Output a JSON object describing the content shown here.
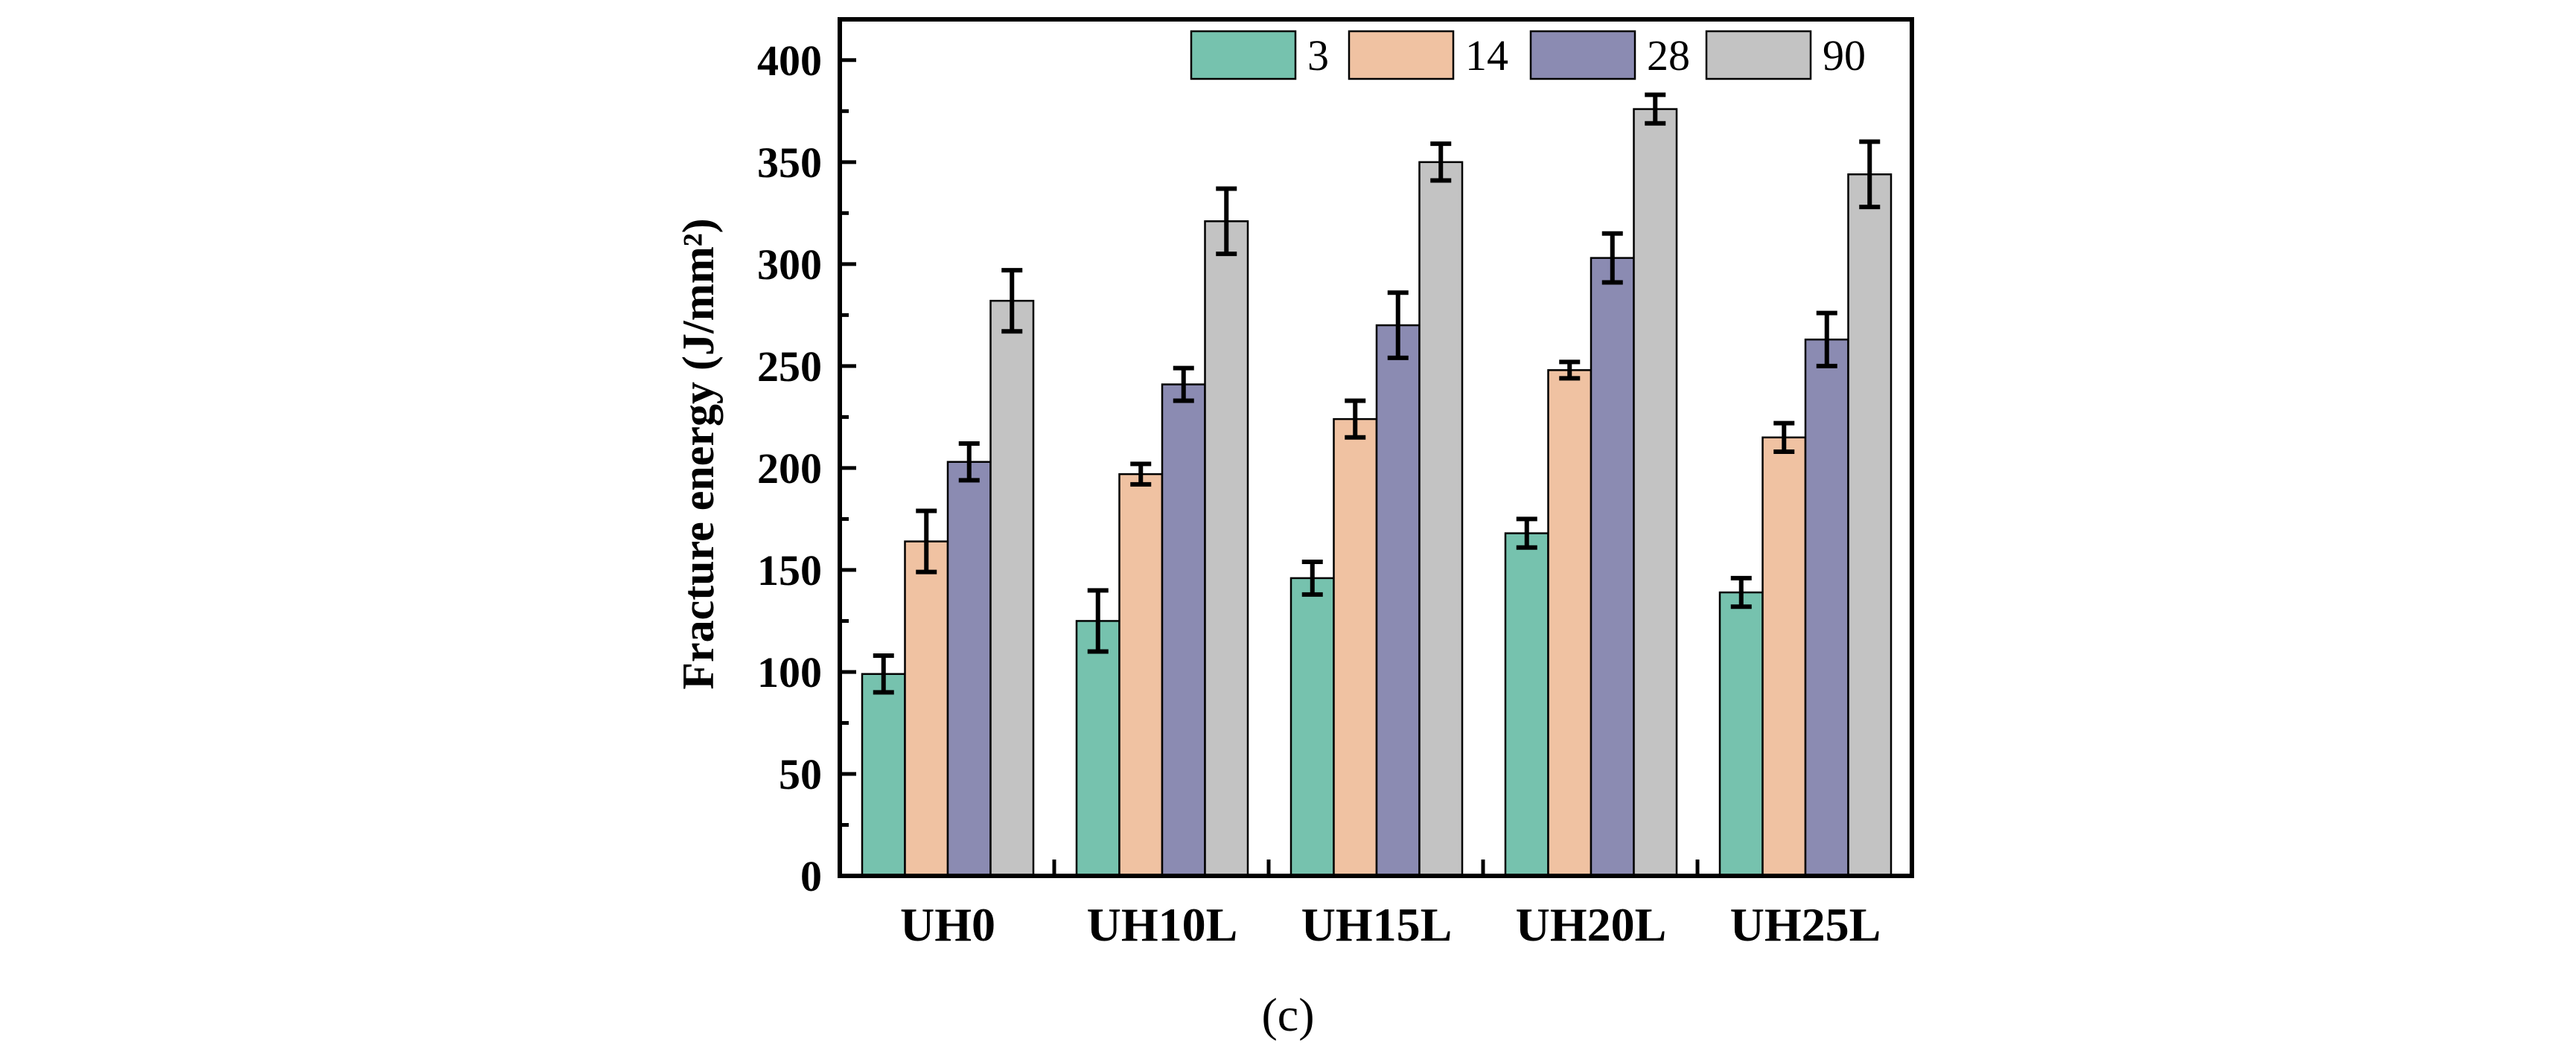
{
  "chart_data": {
    "type": "bar",
    "title": "",
    "xlabel": "",
    "ylabel": "Fracture energy (J/mm²)",
    "ylim": [
      0,
      420
    ],
    "yticks": [
      0,
      50,
      100,
      150,
      200,
      250,
      300,
      350,
      400
    ],
    "grid": false,
    "legend_position": "top-right",
    "categories": [
      "UH0",
      "UH10L",
      "UH15L",
      "UH20L",
      "UH25L"
    ],
    "series": [
      {
        "name": "3",
        "color": "#76c2ae",
        "values": [
          99,
          125,
          146,
          168,
          139
        ],
        "errors": [
          9,
          15,
          8,
          7,
          7
        ]
      },
      {
        "name": "14",
        "color": "#f0c2a2",
        "values": [
          164,
          197,
          224,
          248,
          215
        ],
        "errors": [
          15,
          5,
          9,
          4,
          7
        ]
      },
      {
        "name": "28",
        "color": "#8b8bb2",
        "values": [
          203,
          241,
          270,
          303,
          263
        ],
        "errors": [
          9,
          8,
          16,
          12,
          13
        ]
      },
      {
        "name": "90",
        "color": "#c3c3c3",
        "values": [
          282,
          321,
          350,
          376,
          344
        ],
        "errors": [
          15,
          16,
          9,
          7,
          16
        ]
      }
    ],
    "caption": "(c)"
  }
}
